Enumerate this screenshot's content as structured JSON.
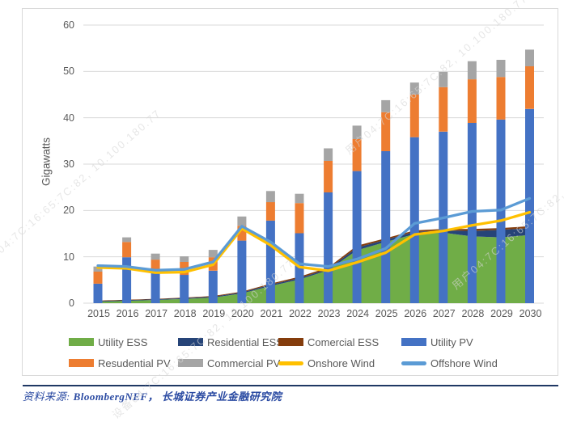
{
  "chart_data": {
    "type": "combo-bar-area-line",
    "title": "",
    "xlabel": "",
    "ylabel": "Gigawatts",
    "ylim": [
      0,
      60
    ],
    "yticks": [
      0,
      10,
      20,
      30,
      40,
      50,
      60
    ],
    "grid": "horizontal",
    "legend_position": "bottom",
    "categories": [
      "2015",
      "2016",
      "2017",
      "2018",
      "2019",
      "2020",
      "2021",
      "2022",
      "2023",
      "2024",
      "2025",
      "2026",
      "2027",
      "2028",
      "2029",
      "2030"
    ],
    "area_series": [
      {
        "name": "Utility ESS",
        "color": "#70AD47",
        "values": [
          0.3,
          0.5,
          0.7,
          0.9,
          1.2,
          2.1,
          3.7,
          5.1,
          7.1,
          11.4,
          13.2,
          14.9,
          15.2,
          14.4,
          14.2,
          14.7
        ]
      },
      {
        "name": "Residential ESS",
        "color": "#264478",
        "values": [
          0.15,
          0.15,
          0.15,
          0.2,
          0.2,
          0.2,
          0.3,
          0.3,
          0.3,
          0.6,
          0.5,
          0.5,
          0.5,
          1.2,
          1.6,
          1.5
        ]
      },
      {
        "name": "Comercial ESS",
        "color": "#843C0C",
        "values": [
          0.1,
          0.1,
          0.1,
          0.1,
          0.15,
          0.2,
          0.2,
          0.3,
          0.3,
          0.4,
          0.3,
          0.3,
          0.3,
          0.4,
          0.4,
          0.4
        ]
      }
    ],
    "bar_series": [
      {
        "name": "Utility PV",
        "color": "#4472C4",
        "values": [
          4.2,
          9.9,
          6.5,
          6.1,
          7.0,
          13.5,
          17.8,
          15.1,
          23.9,
          28.5,
          32.8,
          35.8,
          37.0,
          38.9,
          39.6,
          41.9
        ]
      },
      {
        "name": "Resudential PV",
        "color": "#ED7D31",
        "values": [
          2.6,
          3.3,
          2.9,
          2.8,
          2.9,
          3.2,
          4.0,
          6.5,
          6.8,
          6.9,
          8.4,
          9.2,
          9.6,
          9.4,
          9.2,
          9.2
        ]
      },
      {
        "name": "Commercial PV",
        "color": "#A5A5A5",
        "values": [
          1.1,
          1.0,
          1.3,
          1.2,
          1.6,
          2.0,
          2.4,
          2.0,
          2.7,
          2.9,
          2.6,
          2.6,
          3.3,
          3.9,
          3.7,
          3.6
        ]
      }
    ],
    "line_series": [
      {
        "name": "Onshore Wind",
        "color": "#FFC000",
        "values": [
          7.7,
          7.5,
          6.6,
          6.7,
          8.3,
          16.1,
          12.5,
          7.8,
          7.0,
          8.8,
          10.9,
          14.8,
          15.6,
          16.8,
          17.8,
          19.6
        ]
      },
      {
        "name": "Offshore Wind",
        "color": "#5B9BD5",
        "values": [
          8.1,
          7.9,
          7.1,
          7.3,
          8.9,
          16.6,
          13.2,
          8.5,
          7.9,
          9.5,
          11.8,
          17.2,
          18.4,
          19.8,
          20.1,
          22.6
        ]
      }
    ]
  },
  "legend": {
    "rows": [
      [
        {
          "label": "Utility ESS",
          "color": "#70AD47",
          "shape": "rect"
        },
        {
          "label": "Residential ESS",
          "color": "#264478",
          "shape": "rect"
        },
        {
          "label": "Comercial ESS",
          "color": "#843C0C",
          "shape": "rect"
        },
        {
          "label": "Utility PV",
          "color": "#4472C4",
          "shape": "rect"
        }
      ],
      [
        {
          "label": "Resudential PV",
          "color": "#ED7D31",
          "shape": "rect"
        },
        {
          "label": "Commercial PV",
          "color": "#A5A5A5",
          "shape": "rect"
        },
        {
          "label": "Onshore Wind",
          "color": "#FFC000",
          "shape": "line"
        },
        {
          "label": "Offshore Wind",
          "color": "#5B9BD5",
          "shape": "line"
        }
      ]
    ]
  },
  "footer": {
    "label": "资料来源: ",
    "source": "BloombergNEF， 长城证券产业金融研究院"
  },
  "watermark": {
    "device_text": "设备04:7C:16:65:7C:82, 10.100.180.77",
    "user_text": "用户04:7C:16:65:7C:82, 10.100.180.77"
  },
  "colors": {
    "gridline": "#D9D9D9",
    "axis_text": "#595959",
    "chart_border": "#D9D9D9",
    "footer_rule": "#1F3864",
    "footer_text": "#2A4AA2"
  }
}
